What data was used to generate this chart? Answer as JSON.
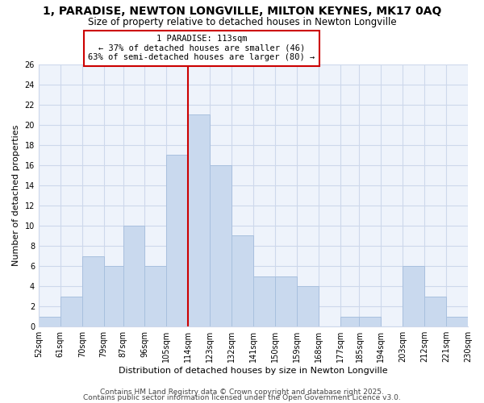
{
  "title": "1, PARADISE, NEWTON LONGVILLE, MILTON KEYNES, MK17 0AQ",
  "subtitle": "Size of property relative to detached houses in Newton Longville",
  "xlabel": "Distribution of detached houses by size in Newton Longville",
  "ylabel": "Number of detached properties",
  "bin_edges": [
    52,
    61,
    70,
    79,
    87,
    96,
    105,
    114,
    123,
    132,
    141,
    150,
    159,
    168,
    177,
    185,
    194,
    203,
    212,
    221,
    230
  ],
  "counts": [
    1,
    3,
    7,
    6,
    10,
    6,
    17,
    21,
    16,
    9,
    5,
    5,
    4,
    0,
    1,
    1,
    0,
    6,
    3,
    1
  ],
  "bar_color": "#c9d9ee",
  "bar_edge_color": "#a8c0de",
  "vline_x": 114,
  "vline_color": "#cc0000",
  "annotation_title": "1 PARADISE: 113sqm",
  "annotation_line1": "← 37% of detached houses are smaller (46)",
  "annotation_line2": "63% of semi-detached houses are larger (80) →",
  "annotation_box_color": "#ffffff",
  "annotation_box_edge": "#cc0000",
  "ylim": [
    0,
    26
  ],
  "yticks": [
    0,
    2,
    4,
    6,
    8,
    10,
    12,
    14,
    16,
    18,
    20,
    22,
    24,
    26
  ],
  "tick_labels": [
    "52sqm",
    "61sqm",
    "70sqm",
    "79sqm",
    "87sqm",
    "96sqm",
    "105sqm",
    "114sqm",
    "123sqm",
    "132sqm",
    "141sqm",
    "150sqm",
    "159sqm",
    "168sqm",
    "177sqm",
    "185sqm",
    "194sqm",
    "203sqm",
    "212sqm",
    "221sqm",
    "230sqm"
  ],
  "footer1": "Contains HM Land Registry data © Crown copyright and database right 2025.",
  "footer2": "Contains public sector information licensed under the Open Government Licence v3.0.",
  "bg_color": "#ffffff",
  "plot_bg_color": "#eef3fb",
  "grid_color": "#cdd8eb",
  "title_fontsize": 10,
  "subtitle_fontsize": 8.5,
  "axis_label_fontsize": 8,
  "tick_fontsize": 7,
  "footer_fontsize": 6.5,
  "annotation_fontsize": 7.5
}
